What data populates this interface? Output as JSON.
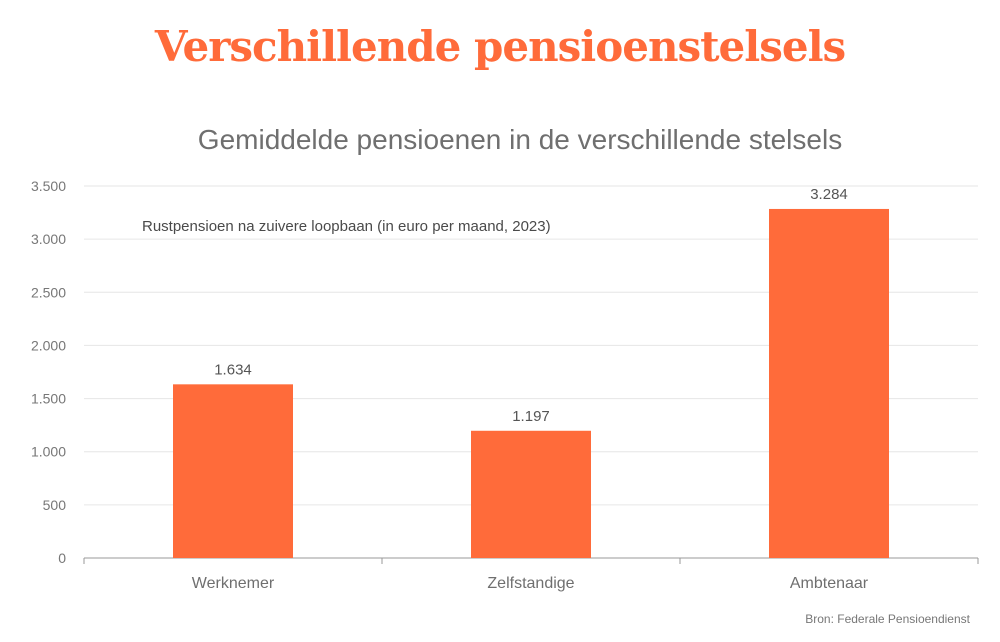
{
  "page_title": "Verschillende pensioenstelsels",
  "source": "Bron: Federale Pensioendienst",
  "chart_data": {
    "type": "bar",
    "title": "Gemiddelde pensioenen in de verschillende stelsels",
    "annotation": "Rustpensioen na zuivere loopbaan (in euro per maand, 2023)",
    "categories": [
      "Werknemer",
      "Zelfstandige",
      "Ambtenaar"
    ],
    "values": [
      1634,
      1197,
      3284
    ],
    "data_labels": [
      "1.634",
      "1.197",
      "3.284"
    ],
    "yticks": [
      0,
      500,
      1000,
      1500,
      2000,
      2500,
      3000,
      3500
    ],
    "ytick_labels": [
      "0",
      "500",
      "1.000",
      "1.500",
      "2.000",
      "2.500",
      "3.000",
      "3.500"
    ],
    "ylim": [
      0,
      3500
    ],
    "xlabel": "",
    "ylabel": "",
    "grid": true,
    "bar_color": "#ff6b3a"
  }
}
